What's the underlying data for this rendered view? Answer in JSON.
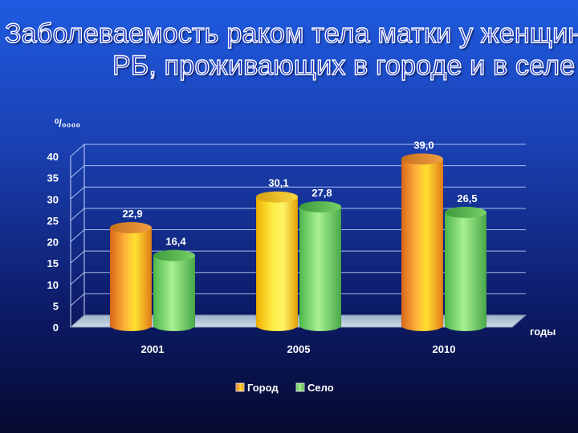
{
  "title": {
    "line1": "Заболеваемость раком тела матки у женщин",
    "line2": "РБ, проживающих в городе и в селе"
  },
  "chart_data": {
    "type": "bar",
    "categories": [
      "2001",
      "2005",
      "2010"
    ],
    "series": [
      {
        "name": "Город",
        "values": [
          22.9,
          30.1,
          39.0
        ],
        "labels": [
          "22,9",
          "30,1",
          "39,0"
        ],
        "color": "#f0a030"
      },
      {
        "name": "Село",
        "values": [
          16.4,
          27.8,
          26.5
        ],
        "labels": [
          "16,4",
          "27,8",
          "26,5"
        ],
        "color": "#80e060"
      }
    ],
    "ylabel": "⁰/₀₀₀₀",
    "xlabel": "годы",
    "ylim": [
      0,
      40
    ],
    "yticks": [
      "0",
      "5",
      "10",
      "15",
      "20",
      "25",
      "30",
      "35",
      "40"
    ],
    "grid": true,
    "legend_position": "bottom"
  },
  "colors": {
    "background_top": "#1f5be0",
    "background_bottom": "#050a30",
    "grid": "#c8d8ff"
  }
}
